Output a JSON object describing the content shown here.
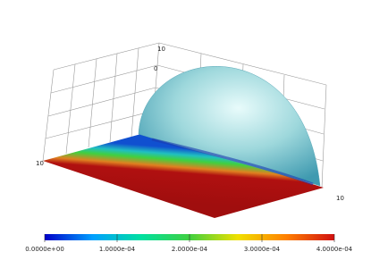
{
  "scene": {
    "axis_labels": [
      "10",
      "0",
      "10",
      "10"
    ]
  },
  "colorbar": {
    "lim": [
      0,
      0.0004
    ],
    "colors": [
      "#0000c8",
      "#00a0ff",
      "#00e0a0",
      "#40d040",
      "#f0e000",
      "#ff8000",
      "#d01010"
    ],
    "ticks": [
      {
        "value": 0,
        "label": "0.0000e+00"
      },
      {
        "value": 0.0001,
        "label": "1.0000e-04"
      },
      {
        "value": 0.0002,
        "label": "2.0000e-04"
      },
      {
        "value": 0.0003,
        "label": "3.0000e-04"
      },
      {
        "value": 0.0004,
        "label": "4.0000e-04"
      }
    ]
  }
}
